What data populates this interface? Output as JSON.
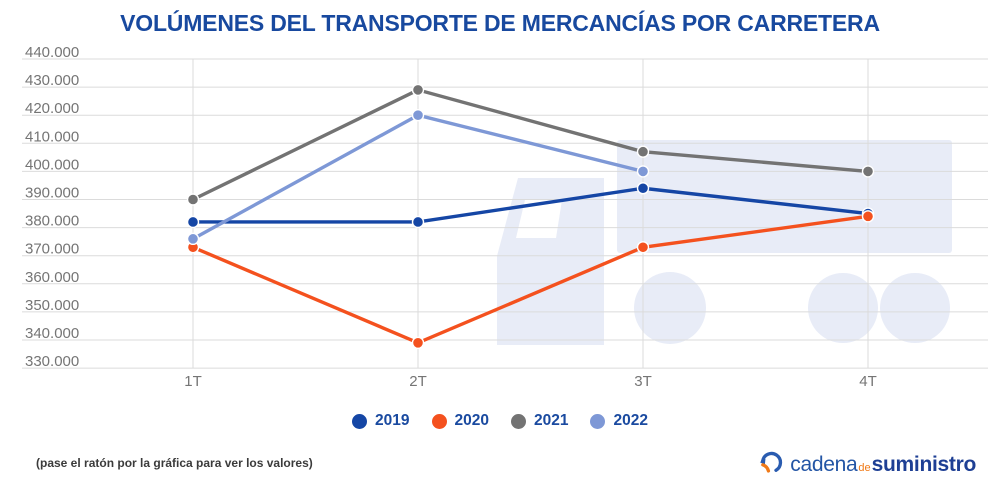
{
  "title": "VOLÚMENES DEL TRANSPORTE DE MERCANCÍAS POR CARRETERA",
  "title_color": "#18499f",
  "chart_data": {
    "type": "line",
    "categories": [
      "1T",
      "2T",
      "3T",
      "4T"
    ],
    "series": [
      {
        "name": "2019",
        "color": "#1546a5",
        "values": [
          382000,
          382000,
          394000,
          385000
        ]
      },
      {
        "name": "2020",
        "color": "#f4511e",
        "values": [
          373000,
          339000,
          373000,
          384000
        ]
      },
      {
        "name": "2021",
        "color": "#737373",
        "values": [
          390000,
          429000,
          407000,
          400000
        ]
      },
      {
        "name": "2022",
        "color": "#7e98d6",
        "values": [
          376000,
          420000,
          400000,
          null
        ]
      }
    ],
    "ylim": [
      330000,
      440000
    ],
    "ytick_step": 10000,
    "ytick_labels": [
      "440.000",
      "430.000",
      "420.000",
      "410.000",
      "400.000",
      "390.000",
      "380.000",
      "370.000",
      "360.000",
      "350.000",
      "340.000",
      "330.000"
    ],
    "grid": true,
    "grid_color": "#dbdbdb",
    "axis_label_color": "#757575",
    "legend_position": "bottom",
    "watermark": "truck-silhouette",
    "watermark_color": "#e8ecf7"
  },
  "legend": {
    "label_color": "#1a4aa0"
  },
  "footer": {
    "hint": "(pase el ratón por la gráfica para ver los valores)"
  },
  "logo": {
    "icon": "circular-arrows-icon",
    "word1": "cadena",
    "word2": "de",
    "word3": "suministro",
    "color_word1": "#2355a5",
    "color_word2": "#f07a18",
    "color_word3": "#1e3f94",
    "icon_blue": "#2a5cb0",
    "icon_orange": "#f07a18"
  }
}
